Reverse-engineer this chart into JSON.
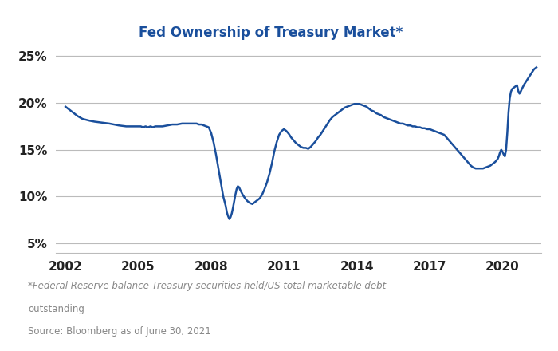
{
  "title": "Fed Ownership of Treasury Market*",
  "title_color": "#1A4F9C",
  "line_color": "#1A4F9C",
  "background_color": "#ffffff",
  "footnote_text": "*Federal Reserve balance Treasury securities held/US total marketable debt\noutstanding\nSource: Bloomberg as of June 30, 2021",
  "footnote_color": "#888888",
  "ylim": [
    0.04,
    0.265
  ],
  "yticks": [
    0.05,
    0.1,
    0.15,
    0.2,
    0.25
  ],
  "ytick_labels": [
    "5%",
    "10%",
    "15%",
    "20%",
    "25%"
  ],
  "xlim": [
    2001.6,
    2021.6
  ],
  "xtick_positions": [
    2002,
    2005,
    2008,
    2011,
    2014,
    2017,
    2020
  ],
  "xtick_labels": [
    "2002",
    "2005",
    "2008",
    "2011",
    "2014",
    "2017",
    "2020"
  ],
  "series": [
    [
      2002.0,
      0.196
    ],
    [
      2002.1,
      0.194
    ],
    [
      2002.2,
      0.192
    ],
    [
      2002.3,
      0.19
    ],
    [
      2002.5,
      0.186
    ],
    [
      2002.7,
      0.183
    ],
    [
      2003.0,
      0.181
    ],
    [
      2003.2,
      0.18
    ],
    [
      2003.5,
      0.179
    ],
    [
      2003.8,
      0.178
    ],
    [
      2004.0,
      0.177
    ],
    [
      2004.2,
      0.176
    ],
    [
      2004.5,
      0.175
    ],
    [
      2004.8,
      0.175
    ],
    [
      2005.0,
      0.175
    ],
    [
      2005.1,
      0.175
    ],
    [
      2005.2,
      0.174
    ],
    [
      2005.3,
      0.175
    ],
    [
      2005.4,
      0.174
    ],
    [
      2005.5,
      0.175
    ],
    [
      2005.6,
      0.174
    ],
    [
      2005.7,
      0.175
    ],
    [
      2005.8,
      0.175
    ],
    [
      2005.9,
      0.175
    ],
    [
      2006.0,
      0.175
    ],
    [
      2006.2,
      0.176
    ],
    [
      2006.4,
      0.177
    ],
    [
      2006.6,
      0.177
    ],
    [
      2006.8,
      0.178
    ],
    [
      2007.0,
      0.178
    ],
    [
      2007.2,
      0.178
    ],
    [
      2007.4,
      0.178
    ],
    [
      2007.5,
      0.177
    ],
    [
      2007.6,
      0.177
    ],
    [
      2007.7,
      0.176
    ],
    [
      2007.8,
      0.175
    ],
    [
      2007.9,
      0.174
    ],
    [
      2008.0,
      0.168
    ],
    [
      2008.1,
      0.158
    ],
    [
      2008.2,
      0.145
    ],
    [
      2008.3,
      0.13
    ],
    [
      2008.4,
      0.115
    ],
    [
      2008.5,
      0.1
    ],
    [
      2008.6,
      0.09
    ],
    [
      2008.65,
      0.083
    ],
    [
      2008.7,
      0.079
    ],
    [
      2008.75,
      0.076
    ],
    [
      2008.8,
      0.078
    ],
    [
      2008.85,
      0.082
    ],
    [
      2008.9,
      0.088
    ],
    [
      2008.95,
      0.095
    ],
    [
      2009.0,
      0.102
    ],
    [
      2009.05,
      0.108
    ],
    [
      2009.1,
      0.111
    ],
    [
      2009.15,
      0.11
    ],
    [
      2009.2,
      0.107
    ],
    [
      2009.3,
      0.102
    ],
    [
      2009.4,
      0.098
    ],
    [
      2009.5,
      0.095
    ],
    [
      2009.6,
      0.093
    ],
    [
      2009.7,
      0.092
    ],
    [
      2009.8,
      0.094
    ],
    [
      2009.9,
      0.096
    ],
    [
      2010.0,
      0.098
    ],
    [
      2010.1,
      0.102
    ],
    [
      2010.2,
      0.108
    ],
    [
      2010.3,
      0.115
    ],
    [
      2010.4,
      0.124
    ],
    [
      2010.5,
      0.135
    ],
    [
      2010.6,
      0.148
    ],
    [
      2010.7,
      0.158
    ],
    [
      2010.8,
      0.166
    ],
    [
      2010.9,
      0.17
    ],
    [
      2011.0,
      0.172
    ],
    [
      2011.1,
      0.17
    ],
    [
      2011.2,
      0.167
    ],
    [
      2011.3,
      0.163
    ],
    [
      2011.4,
      0.16
    ],
    [
      2011.5,
      0.157
    ],
    [
      2011.6,
      0.155
    ],
    [
      2011.7,
      0.153
    ],
    [
      2011.8,
      0.152
    ],
    [
      2011.9,
      0.152
    ],
    [
      2012.0,
      0.151
    ],
    [
      2012.1,
      0.153
    ],
    [
      2012.2,
      0.156
    ],
    [
      2012.3,
      0.159
    ],
    [
      2012.4,
      0.163
    ],
    [
      2012.5,
      0.166
    ],
    [
      2012.6,
      0.17
    ],
    [
      2012.7,
      0.174
    ],
    [
      2012.8,
      0.178
    ],
    [
      2012.9,
      0.182
    ],
    [
      2013.0,
      0.185
    ],
    [
      2013.1,
      0.187
    ],
    [
      2013.2,
      0.189
    ],
    [
      2013.3,
      0.191
    ],
    [
      2013.4,
      0.193
    ],
    [
      2013.5,
      0.195
    ],
    [
      2013.6,
      0.196
    ],
    [
      2013.7,
      0.197
    ],
    [
      2013.8,
      0.198
    ],
    [
      2013.9,
      0.199
    ],
    [
      2014.0,
      0.199
    ],
    [
      2014.1,
      0.199
    ],
    [
      2014.2,
      0.198
    ],
    [
      2014.3,
      0.197
    ],
    [
      2014.4,
      0.196
    ],
    [
      2014.5,
      0.194
    ],
    [
      2014.6,
      0.192
    ],
    [
      2014.7,
      0.191
    ],
    [
      2014.8,
      0.189
    ],
    [
      2014.9,
      0.188
    ],
    [
      2015.0,
      0.187
    ],
    [
      2015.1,
      0.185
    ],
    [
      2015.2,
      0.184
    ],
    [
      2015.3,
      0.183
    ],
    [
      2015.4,
      0.182
    ],
    [
      2015.5,
      0.181
    ],
    [
      2015.6,
      0.18
    ],
    [
      2015.7,
      0.179
    ],
    [
      2015.8,
      0.178
    ],
    [
      2015.9,
      0.178
    ],
    [
      2016.0,
      0.177
    ],
    [
      2016.1,
      0.176
    ],
    [
      2016.2,
      0.176
    ],
    [
      2016.3,
      0.175
    ],
    [
      2016.4,
      0.175
    ],
    [
      2016.5,
      0.174
    ],
    [
      2016.6,
      0.174
    ],
    [
      2016.7,
      0.173
    ],
    [
      2016.8,
      0.173
    ],
    [
      2016.9,
      0.172
    ],
    [
      2017.0,
      0.172
    ],
    [
      2017.1,
      0.171
    ],
    [
      2017.2,
      0.17
    ],
    [
      2017.3,
      0.169
    ],
    [
      2017.4,
      0.168
    ],
    [
      2017.5,
      0.167
    ],
    [
      2017.6,
      0.166
    ],
    [
      2017.7,
      0.163
    ],
    [
      2017.8,
      0.16
    ],
    [
      2017.9,
      0.157
    ],
    [
      2018.0,
      0.154
    ],
    [
      2018.1,
      0.151
    ],
    [
      2018.2,
      0.148
    ],
    [
      2018.3,
      0.145
    ],
    [
      2018.4,
      0.142
    ],
    [
      2018.5,
      0.139
    ],
    [
      2018.6,
      0.136
    ],
    [
      2018.7,
      0.133
    ],
    [
      2018.8,
      0.131
    ],
    [
      2018.9,
      0.13
    ],
    [
      2019.0,
      0.13
    ],
    [
      2019.1,
      0.13
    ],
    [
      2019.2,
      0.13
    ],
    [
      2019.3,
      0.131
    ],
    [
      2019.4,
      0.132
    ],
    [
      2019.5,
      0.133
    ],
    [
      2019.6,
      0.135
    ],
    [
      2019.7,
      0.137
    ],
    [
      2019.8,
      0.14
    ],
    [
      2019.85,
      0.143
    ],
    [
      2019.9,
      0.147
    ],
    [
      2019.95,
      0.15
    ],
    [
      2020.0,
      0.148
    ],
    [
      2020.05,
      0.145
    ],
    [
      2020.1,
      0.143
    ],
    [
      2020.15,
      0.15
    ],
    [
      2020.2,
      0.168
    ],
    [
      2020.25,
      0.19
    ],
    [
      2020.3,
      0.205
    ],
    [
      2020.35,
      0.212
    ],
    [
      2020.4,
      0.215
    ],
    [
      2020.5,
      0.217
    ],
    [
      2020.6,
      0.219
    ],
    [
      2020.65,
      0.213
    ],
    [
      2020.7,
      0.21
    ],
    [
      2020.75,
      0.212
    ],
    [
      2020.8,
      0.215
    ],
    [
      2020.9,
      0.22
    ],
    [
      2021.0,
      0.224
    ],
    [
      2021.1,
      0.228
    ],
    [
      2021.2,
      0.232
    ],
    [
      2021.3,
      0.236
    ],
    [
      2021.4,
      0.238
    ]
  ]
}
